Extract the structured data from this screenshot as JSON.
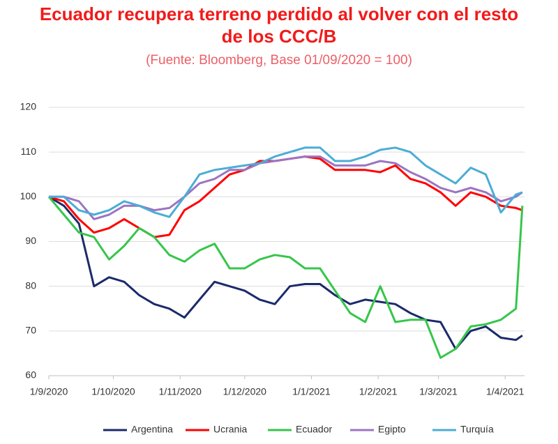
{
  "chart_data": {
    "type": "line",
    "title": "Ecuador recupera terreno perdido al volver con el resto de los CCC/B",
    "subtitle": "(Fuente: Bloomberg, Base 01/09/2020 = 100)",
    "x": [
      "1/9/2020",
      "8/9/2020",
      "15/9/2020",
      "22/9/2020",
      "29/9/2020",
      "6/10/2020",
      "13/10/2020",
      "20/10/2020",
      "27/10/2020",
      "3/11/2020",
      "10/11/2020",
      "17/11/2020",
      "24/11/2020",
      "1/12/2020",
      "8/12/2020",
      "15/12/2020",
      "22/12/2020",
      "29/12/2020",
      "5/1/2021",
      "12/1/2021",
      "19/1/2021",
      "26/1/2021",
      "2/2/2021",
      "9/2/2021",
      "16/2/2021",
      "23/2/2021",
      "2/3/2021",
      "9/3/2021",
      "16/3/2021",
      "23/3/2021",
      "30/3/2021",
      "6/4/2021",
      "9/4/2021"
    ],
    "xlim": [
      "1/9/2020",
      "10/4/2021"
    ],
    "xticks": [
      "1/9/2020",
      "1/10/2020",
      "1/11/2020",
      "1/12/2020",
      "1/1/2021",
      "1/2/2021",
      "1/3/2021",
      "1/4/2021"
    ],
    "ylim": [
      60,
      120
    ],
    "yticks": [
      60,
      70,
      80,
      90,
      100,
      110,
      120
    ],
    "grid": true,
    "legend": "bottom",
    "series": [
      {
        "name": "Argentina",
        "color": "#1b2a6b",
        "values": [
          100,
          98,
          94,
          80,
          82,
          81,
          78,
          76,
          75,
          73,
          77,
          81,
          80,
          79,
          77,
          76,
          80,
          80.5,
          80.5,
          78,
          76,
          77,
          76.5,
          76,
          74,
          72.5,
          72,
          66,
          70,
          71,
          68.5,
          68,
          69
        ]
      },
      {
        "name": "Ucrania",
        "color": "#ff0000",
        "values": [
          100,
          99,
          95,
          92,
          93,
          95,
          93,
          91,
          91.5,
          97,
          99,
          102,
          105,
          106,
          108,
          108,
          108.5,
          109,
          108.5,
          106,
          106,
          106,
          105.5,
          107,
          104,
          103,
          101,
          98,
          101,
          100,
          98,
          97.5,
          97
        ]
      },
      {
        "name": "Ecuador",
        "color": "#35c64a",
        "values": [
          100,
          96,
          92,
          91,
          86,
          89,
          93,
          91,
          87,
          85.5,
          88,
          89.5,
          84,
          84,
          86,
          87,
          86.5,
          84,
          84,
          79,
          74,
          72,
          80,
          72,
          72.5,
          72.5,
          64,
          66,
          71,
          71.5,
          72.5,
          75,
          98
        ]
      },
      {
        "name": "Egipto",
        "color": "#9c74c2",
        "values": [
          100,
          100,
          99,
          95,
          96,
          98,
          98,
          97,
          97.5,
          100,
          103,
          104,
          106,
          106,
          107.5,
          108,
          108.5,
          109,
          109,
          107,
          107,
          107,
          108,
          107.5,
          105.5,
          104,
          102,
          101,
          102,
          101,
          99,
          100,
          101
        ]
      },
      {
        "name": "Turquía",
        "color": "#4badd6",
        "values": [
          100,
          100,
          97,
          96,
          97,
          99,
          98,
          96.5,
          95.5,
          100,
          105,
          106,
          106.5,
          107,
          107.5,
          109,
          110,
          111,
          111,
          108,
          108,
          109,
          110.5,
          111,
          110,
          107,
          105,
          103,
          106.5,
          105,
          96.5,
          100.5,
          101
        ]
      }
    ]
  }
}
